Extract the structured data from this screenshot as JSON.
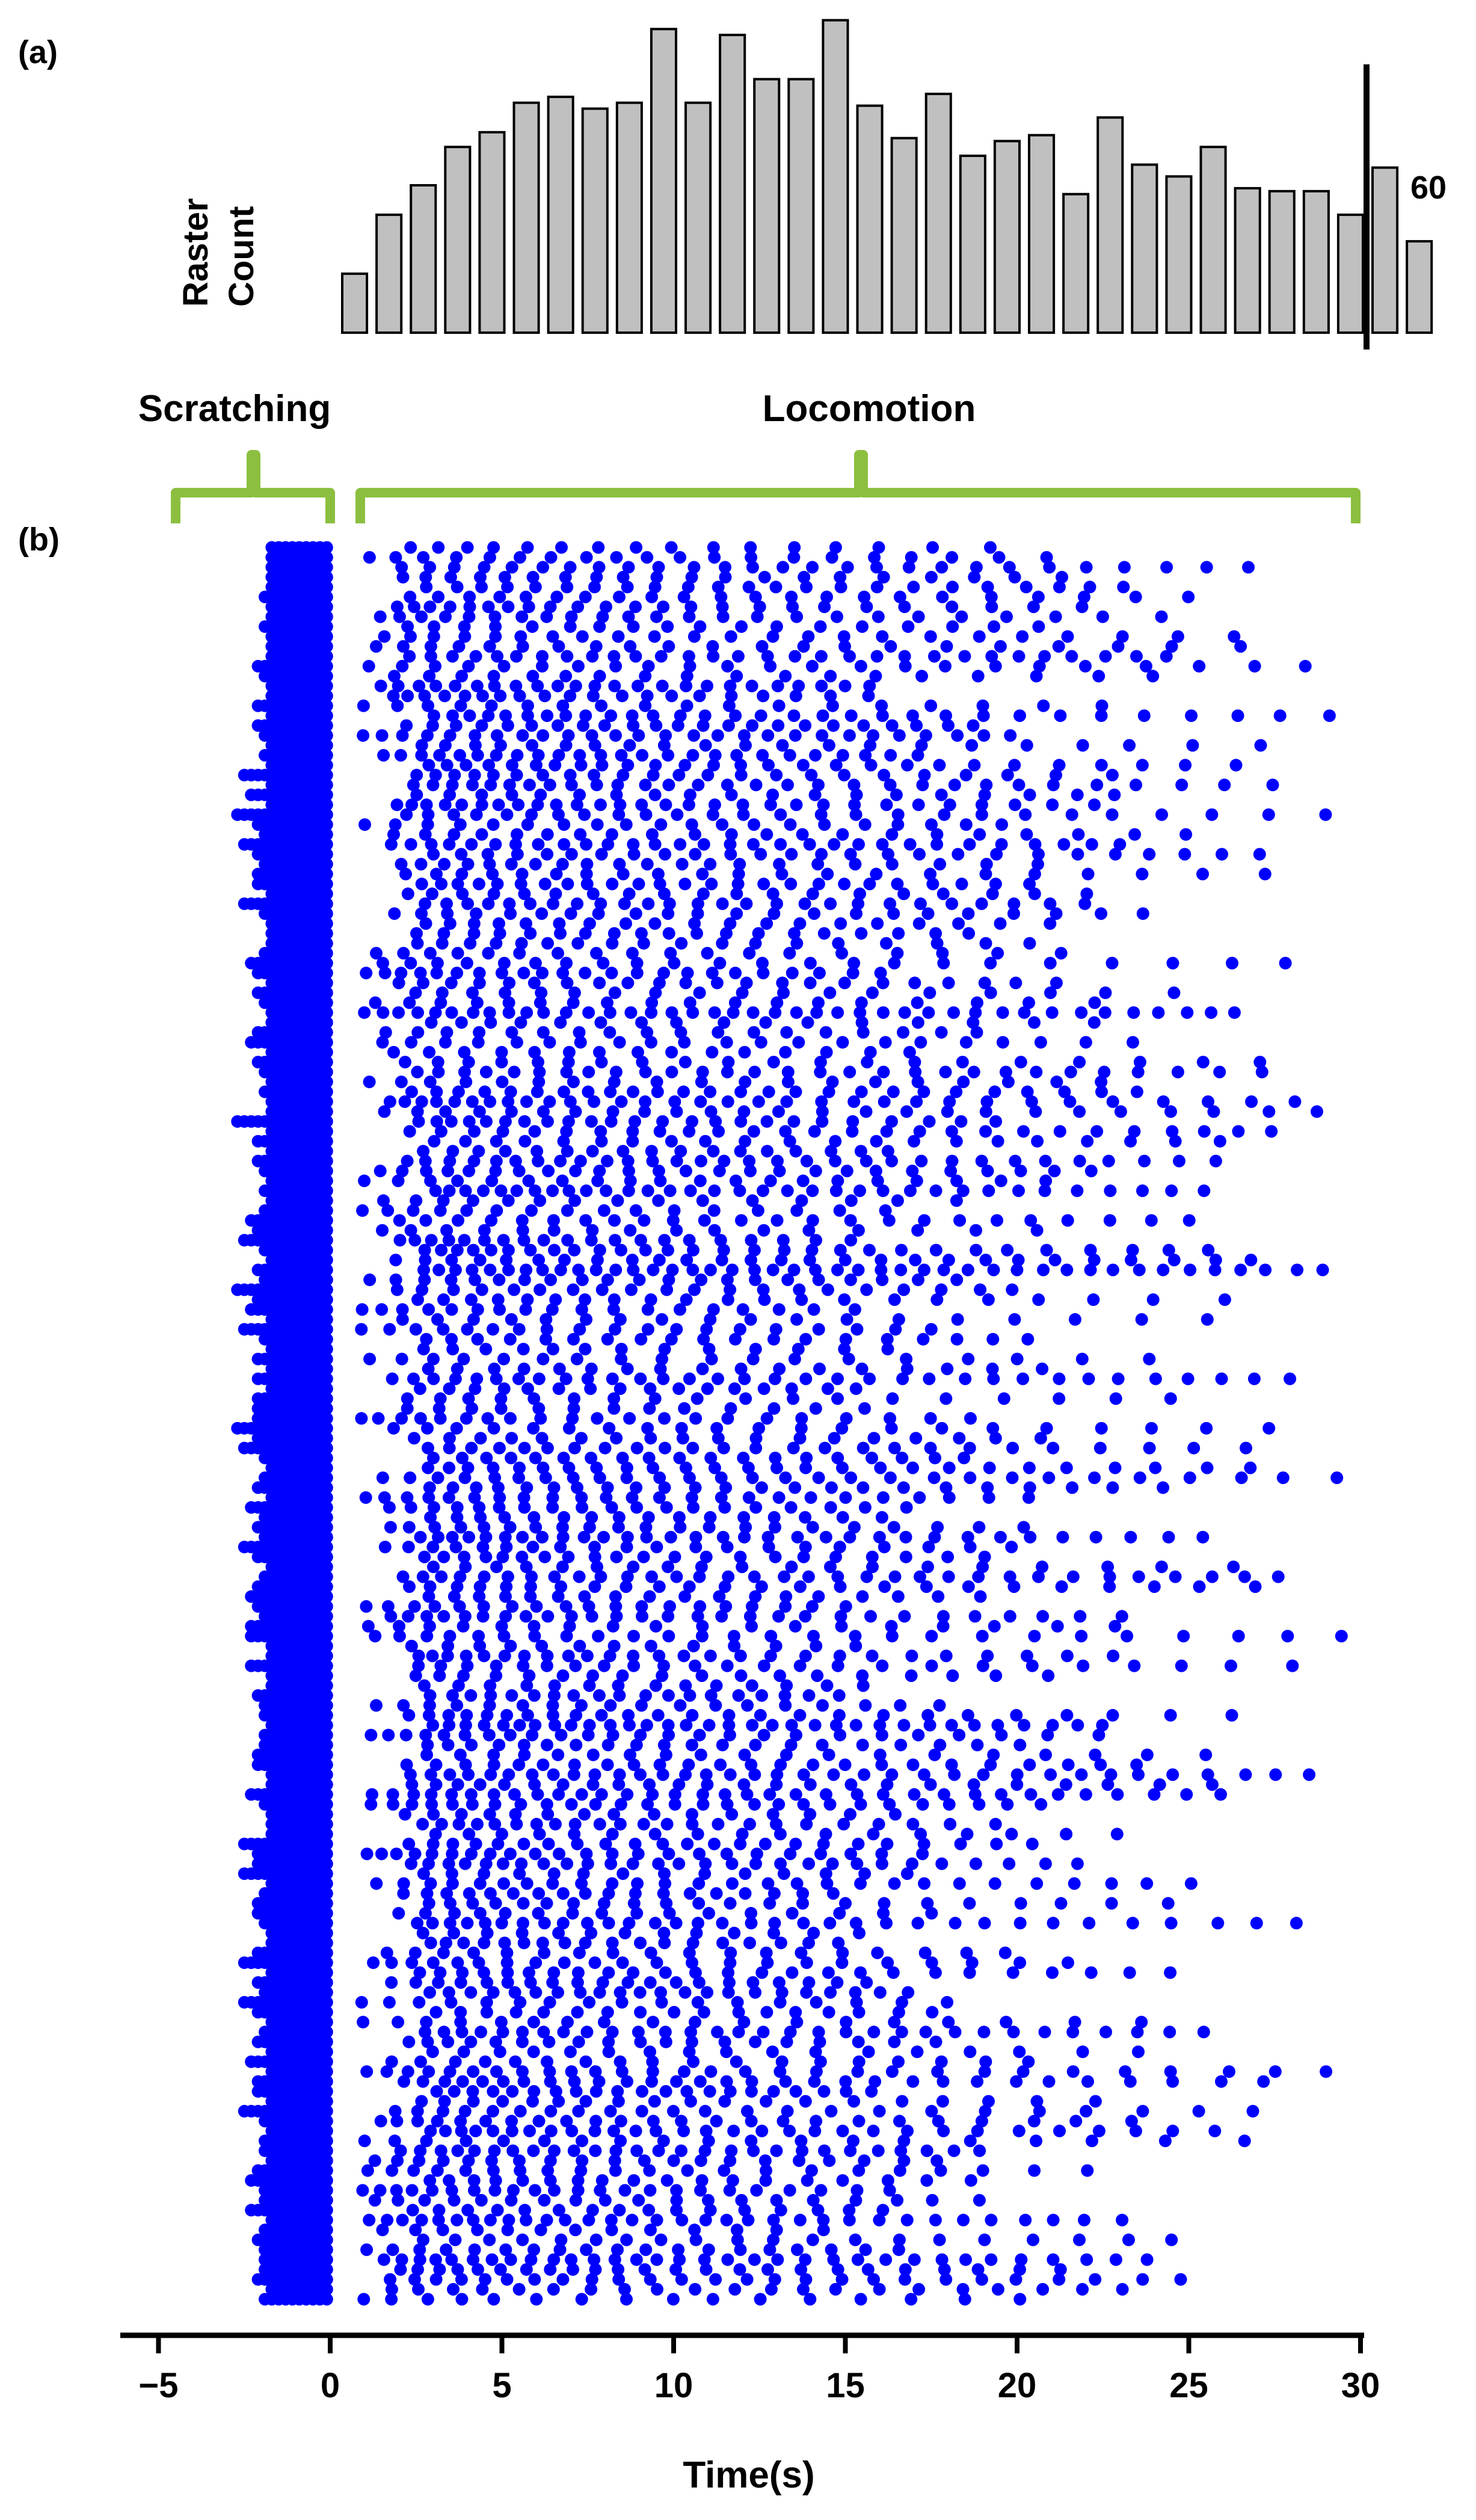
{
  "figure": {
    "panel_a_label": "(a)",
    "panel_b_label": "(b)",
    "histogram_label_line1": "Raster",
    "histogram_label_line2": "Count",
    "scale_bar_label": "60",
    "phase_scratching": "Scratching",
    "phase_locomotion": "Locomotion",
    "colors": {
      "raster_dots": "#0000ff",
      "histogram_bars": "#c0c0c0",
      "histogram_bar_outline": "#000000",
      "phase_brackets": "#8cbf3f",
      "axis": "#000000"
    }
  },
  "chart_data": [
    {
      "type": "bar",
      "title": "",
      "ylabel": "Raster Count",
      "scale_bar_value": 60,
      "bin_start": 0,
      "bin_width": 1,
      "values": [
        20,
        40,
        50,
        63,
        68,
        78,
        80,
        76,
        78,
        103,
        78,
        101,
        86,
        86,
        106,
        77,
        66,
        81,
        60,
        65,
        67,
        47,
        73,
        57,
        53,
        63,
        49,
        48,
        48,
        40,
        56,
        31
      ]
    },
    {
      "type": "scatter",
      "title": "",
      "xlabel": "Time(s)",
      "xlim": [
        -5.5,
        30.3
      ],
      "x_ticks": [
        -5,
        0,
        5,
        10,
        15,
        20,
        25,
        30
      ],
      "x_tick_labels": [
        "−5",
        "0",
        "5",
        "10",
        "15",
        "20",
        "25",
        "30"
      ],
      "phases": [
        {
          "name": "Scratching",
          "start": -4.5,
          "end": 0
        },
        {
          "name": "Locomotion",
          "start": 0.9,
          "end": 29.8
        }
      ],
      "scratching_onsets": [
        -1.7,
        -1.7,
        -1.7,
        -1.7,
        -1.7,
        -1.9,
        -1.7,
        -1.7,
        -1.9,
        -1.7,
        -1.7,
        -1.7,
        -2.1,
        -1.9,
        -1.7,
        -1.7,
        -2.1,
        -1.7,
        -2.1,
        -1.9,
        -1.7,
        -1.9,
        -1.7,
        -2.5,
        -1.7,
        -2.3,
        -1.7,
        -2.7,
        -2.1,
        -1.9,
        -2.5,
        -2.1,
        -1.9,
        -2.1,
        -2.1,
        -1.7,
        -2.5,
        -1.9,
        -1.7,
        -1.7,
        -1.7,
        -1.9,
        -2.3,
        -2.1,
        -1.7,
        -2.1,
        -1.9,
        -1.7,
        -1.7,
        -2.1,
        -2.3,
        -1.7,
        -2.1,
        -1.9,
        -1.7,
        -1.9,
        -1.7,
        -1.7,
        -2.7,
        -1.7,
        -2.1,
        -1.7,
        -2.1,
        -1.9,
        -1.7,
        -1.9,
        -1.7,
        -1.9,
        -2.3,
        -2.1,
        -2.5,
        -1.9,
        -1.7,
        -2.1,
        -1.9,
        -2.7,
        -2.1,
        -2.3,
        -1.7,
        -2.5,
        -1.9,
        -1.7,
        -2.1,
        -1.7,
        -2.1,
        -1.7,
        -2.1,
        -2.1,
        -2.1,
        -2.7,
        -2.1,
        -2.5,
        -1.9,
        -1.7,
        -1.9,
        -2.1,
        -1.7,
        -2.3,
        -1.9,
        -2.1,
        -1.9,
        -2.5,
        -2.1,
        -1.7,
        -1.9,
        -2.1,
        -2.3,
        -2.1,
        -1.9,
        -2.3,
        -2.3,
        -1.7,
        -1.7,
        -2.3,
        -1.7,
        -1.7,
        -2.1,
        -1.9,
        -1.9,
        -1.7,
        -1.9,
        -1.9,
        -2.1,
        -2.1,
        -1.7,
        -1.7,
        -2.3,
        -1.9,
        -1.7,
        -1.7,
        -1.7,
        -2.5,
        -2.1,
        -2.1,
        -2.5,
        -1.7,
        -1.9,
        -2.1,
        -2.1,
        -1.9,
        -1.7,
        -1.7,
        -2.1,
        -2.5,
        -1.7,
        -2.1,
        -1.9,
        -2.5,
        -2.1,
        -1.7,
        -1.9,
        -2.1,
        -1.7,
        -2.3,
        -1.7,
        -2.1,
        -2.1,
        -1.7,
        -2.5,
        -1.9,
        -1.7,
        -1.9,
        -1.9,
        -1.7,
        -2.1,
        -2.3,
        -1.9,
        -1.9,
        -2.3,
        -1.7,
        -1.9,
        -2.1,
        -1.9,
        -1.9,
        -1.9,
        -2.1,
        -1.7,
        -1.9
      ],
      "locomotion_events_note": ""
    }
  ]
}
